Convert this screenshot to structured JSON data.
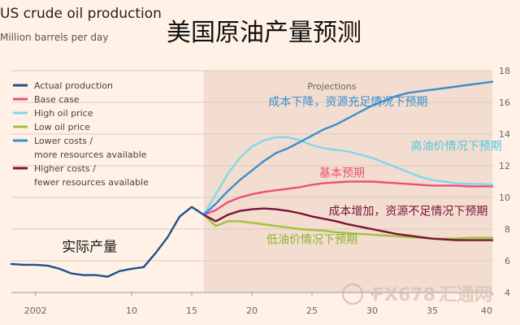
{
  "header": {
    "title": "US crude oil production",
    "subtitle": "Million barrels per day",
    "headline_cn": "美国原油产量预测"
  },
  "watermark": {
    "logo_text": "FX678",
    "logo_text_cn": "汇通网"
  },
  "colors": {
    "background": "#fff1e5",
    "projection_band": "#f2ddd0",
    "actual": "#1f4f8f",
    "base": "#e94f7a",
    "high_price": "#7fd8ea",
    "low_price": "#9fc23b",
    "lower_costs": "#3a8fcc",
    "higher_costs": "#7a1236",
    "grid": "#dccbbd",
    "axis_text": "#666666"
  },
  "chart_data": {
    "type": "line",
    "title": "US crude oil production",
    "subtitle": "Million barrels per day",
    "xlim": [
      2000,
      2040
    ],
    "ylim": [
      4,
      18
    ],
    "x_ticks": [
      {
        "value": 2002,
        "label": "2002"
      },
      {
        "value": 2010,
        "label": "10"
      },
      {
        "value": 2015,
        "label": "15"
      },
      {
        "value": 2020,
        "label": "20"
      },
      {
        "value": 2025,
        "label": "25"
      },
      {
        "value": 2030,
        "label": "30"
      },
      {
        "value": 2035,
        "label": "35"
      },
      {
        "value": 2040,
        "label": "40"
      }
    ],
    "y_ticks": [
      4,
      6,
      8,
      10,
      12,
      14,
      16,
      18
    ],
    "grid": true,
    "projection_start": 2016,
    "projection_label": "Projections",
    "legend_position": "top-left",
    "series": [
      {
        "key": "actual",
        "name": "Actual production",
        "name_line2": "",
        "x": [
          2000,
          2001,
          2002,
          2003,
          2004,
          2005,
          2006,
          2007,
          2008,
          2009,
          2010,
          2011,
          2012,
          2013,
          2014,
          2015,
          2016
        ],
        "y": [
          5.8,
          5.75,
          5.75,
          5.7,
          5.5,
          5.2,
          5.1,
          5.1,
          5.0,
          5.35,
          5.5,
          5.6,
          6.5,
          7.5,
          8.8,
          9.4,
          8.9
        ]
      },
      {
        "key": "base",
        "name": "Base case",
        "name_line2": "",
        "x": [
          2016,
          2017,
          2018,
          2019,
          2020,
          2021,
          2022,
          2023,
          2024,
          2025,
          2026,
          2027,
          2028,
          2029,
          2030,
          2031,
          2032,
          2033,
          2034,
          2035,
          2036,
          2037,
          2038,
          2039,
          2040
        ],
        "y": [
          8.9,
          9.2,
          9.7,
          10.0,
          10.2,
          10.35,
          10.45,
          10.55,
          10.65,
          10.8,
          10.9,
          10.95,
          11.0,
          11.0,
          11.0,
          10.95,
          10.9,
          10.85,
          10.8,
          10.75,
          10.75,
          10.75,
          10.7,
          10.7,
          10.7
        ]
      },
      {
        "key": "high_price",
        "name": "High oil price",
        "name_line2": "",
        "x": [
          2016,
          2017,
          2018,
          2019,
          2020,
          2021,
          2022,
          2023,
          2024,
          2025,
          2026,
          2027,
          2028,
          2029,
          2030,
          2031,
          2032,
          2033,
          2034,
          2035,
          2036,
          2037,
          2038,
          2039,
          2040
        ],
        "y": [
          8.9,
          10.2,
          11.5,
          12.5,
          13.2,
          13.6,
          13.8,
          13.8,
          13.6,
          13.3,
          13.1,
          13.0,
          12.9,
          12.7,
          12.5,
          12.2,
          11.9,
          11.6,
          11.3,
          11.1,
          11.0,
          10.9,
          10.85,
          10.85,
          10.8
        ]
      },
      {
        "key": "low_price",
        "name": "Low oil price",
        "name_line2": "",
        "x": [
          2016,
          2017,
          2018,
          2019,
          2020,
          2021,
          2022,
          2023,
          2024,
          2025,
          2026,
          2027,
          2028,
          2029,
          2030,
          2031,
          2032,
          2033,
          2034,
          2035,
          2036,
          2037,
          2038,
          2039,
          2040
        ],
        "y": [
          8.9,
          8.2,
          8.5,
          8.5,
          8.4,
          8.3,
          8.2,
          8.1,
          8.0,
          7.95,
          7.9,
          7.8,
          7.75,
          7.7,
          7.65,
          7.6,
          7.55,
          7.5,
          7.45,
          7.4,
          7.4,
          7.4,
          7.45,
          7.45,
          7.45
        ]
      },
      {
        "key": "lower_costs",
        "name": "Lower costs /",
        "name_line2": "more resources available",
        "x": [
          2016,
          2017,
          2018,
          2019,
          2020,
          2021,
          2022,
          2023,
          2024,
          2025,
          2026,
          2027,
          2028,
          2029,
          2030,
          2031,
          2032,
          2033,
          2034,
          2035,
          2036,
          2037,
          2038,
          2039,
          2040
        ],
        "y": [
          8.9,
          9.6,
          10.4,
          11.1,
          11.7,
          12.3,
          12.8,
          13.1,
          13.5,
          13.9,
          14.3,
          14.6,
          15.0,
          15.4,
          15.8,
          16.1,
          16.4,
          16.6,
          16.7,
          16.8,
          16.9,
          17.0,
          17.1,
          17.2,
          17.3
        ]
      },
      {
        "key": "higher_costs",
        "name": "Higher costs /",
        "name_line2": "fewer resources available",
        "x": [
          2016,
          2017,
          2018,
          2019,
          2020,
          2021,
          2022,
          2023,
          2024,
          2025,
          2026,
          2027,
          2028,
          2029,
          2030,
          2031,
          2032,
          2033,
          2034,
          2035,
          2036,
          2037,
          2038,
          2039,
          2040
        ],
        "y": [
          8.9,
          8.5,
          8.9,
          9.15,
          9.25,
          9.3,
          9.25,
          9.15,
          9.0,
          8.8,
          8.65,
          8.5,
          8.3,
          8.15,
          8.0,
          7.85,
          7.7,
          7.6,
          7.5,
          7.4,
          7.35,
          7.3,
          7.3,
          7.3,
          7.3
        ]
      }
    ],
    "annotations": [
      {
        "text": "实际产量",
        "x": 2006.5,
        "y": 6.6,
        "color": "#1a1a1a",
        "size": 17
      },
      {
        "text": "成本下降，资源充足情况下预期",
        "x": 2028,
        "y": 15.8,
        "color": "#3a8fcc",
        "size": 14
      },
      {
        "text": "高油价情况下预期",
        "x": 2037,
        "y": 13.0,
        "color": "#4fc7df",
        "size": 14
      },
      {
        "text": "基本预期",
        "x": 2027.5,
        "y": 11.3,
        "color": "#e94f7a",
        "size": 14
      },
      {
        "text": "成本增加，资源不足情况下预期",
        "x": 2033,
        "y": 8.9,
        "color": "#7a1236",
        "size": 14
      },
      {
        "text": "低油价情况下预期",
        "x": 2025,
        "y": 7.1,
        "color": "#8db32b",
        "size": 14
      }
    ]
  }
}
